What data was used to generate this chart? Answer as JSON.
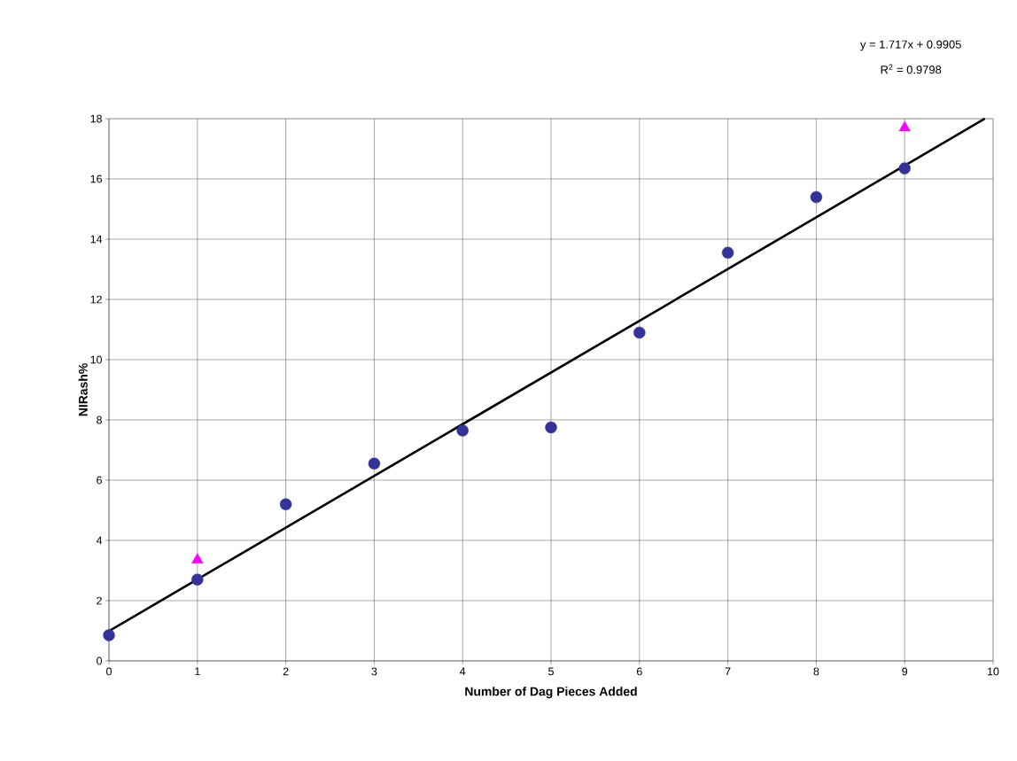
{
  "chart_data": {
    "type": "scatter",
    "xlabel": "Number of Dag Pieces Added",
    "ylabel": "NIRash%",
    "annotations": [
      "y = 1.717x + 0.9905",
      "R$^{2}$ = 0.9798"
    ],
    "x": [
      0,
      1,
      2,
      3,
      4,
      5,
      6,
      7,
      8,
      9
    ],
    "series": [
      {
        "color": "#333399",
        "marker": "circle",
        "values": [
          0.85,
          2.7,
          5.2,
          6.55,
          7.65,
          7.75,
          10.9,
          13.55,
          15.4,
          16.35
        ]
      },
      {
        "color": "#ff00ff",
        "marker": "triangle",
        "x": [
          1,
          9
        ],
        "values": [
          3.35,
          17.7
        ]
      },
      {
        "type": "line",
        "color": "#000000",
        "marker": "none",
        "x": [
          0,
          9.907
        ],
        "values": [
          0.99,
          18
        ]
      }
    ],
    "xlim": [
      0,
      10
    ],
    "ylim": [
      0,
      18
    ],
    "xticks": [
      0,
      1,
      2,
      3,
      4,
      5,
      6,
      7,
      8,
      9,
      10
    ],
    "yticks": [
      0,
      2,
      4,
      6,
      8,
      10,
      12,
      14,
      16,
      18
    ],
    "grid": true
  }
}
